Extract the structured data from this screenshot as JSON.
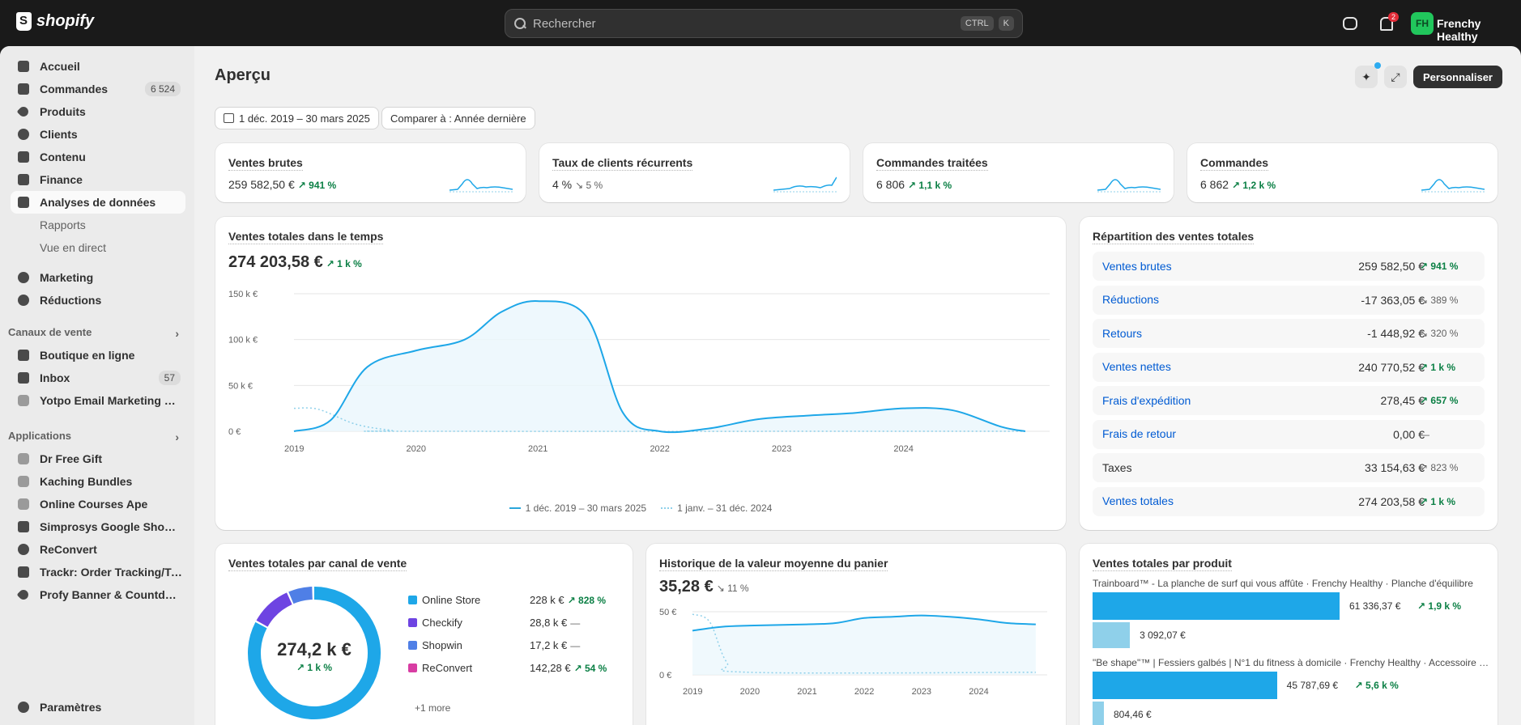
{
  "topbar": {
    "brand": "shopify",
    "search_placeholder": "Rechercher",
    "kbd_ctrl": "CTRL",
    "kbd_k": "K",
    "notifications_count": "2",
    "avatar_initials": "FH",
    "store_name": "Frenchy Healthy"
  },
  "sidebar": {
    "items": [
      {
        "label": "Accueil",
        "icon": "home-icon"
      },
      {
        "label": "Commandes",
        "icon": "inbox-icon",
        "count": "6 524"
      },
      {
        "label": "Produits",
        "icon": "tag-icon"
      },
      {
        "label": "Clients",
        "icon": "person-icon"
      },
      {
        "label": "Contenu",
        "icon": "content-icon"
      },
      {
        "label": "Finance",
        "icon": "bank-icon"
      },
      {
        "label": "Analyses de données",
        "icon": "chart-icon"
      },
      {
        "label": "Rapports"
      },
      {
        "label": "Vue en direct"
      },
      {
        "label": "Marketing",
        "icon": "target-icon"
      },
      {
        "label": "Réductions",
        "icon": "discount-icon"
      }
    ],
    "sales_channels_heading": "Canaux de vente",
    "sales_channels": [
      {
        "label": "Boutique en ligne",
        "icon": "store-icon"
      },
      {
        "label": "Inbox",
        "icon": "inbox-app-icon",
        "count": "57"
      },
      {
        "label": "Yotpo Email Marketing & S...",
        "icon": "yotpo-icon"
      }
    ],
    "apps_heading": "Applications",
    "apps": [
      {
        "label": "Dr Free Gift"
      },
      {
        "label": "Kaching Bundles"
      },
      {
        "label": "Online Courses Ape"
      },
      {
        "label": "Simprosys Google Shoppi..."
      },
      {
        "label": "ReConvert"
      },
      {
        "label": "Trackr: Order Tracking/Tr..."
      },
      {
        "label": "Profy Banner & Countdow..."
      }
    ],
    "settings_label": "Paramètres"
  },
  "header": {
    "title": "Aperçu",
    "customize_label": "Personnaliser",
    "date_range": "1 déc. 2019 – 30 mars 2025",
    "compare": "Comparer à : Année dernière"
  },
  "kpis": [
    {
      "title": "Ventes brutes",
      "value": "259 582,50 €",
      "change": "↗ 941 %",
      "dir": "up"
    },
    {
      "title": "Taux de clients récurrents",
      "value": "4 %",
      "change": "↘ 5 %",
      "dir": "down"
    },
    {
      "title": "Commandes traitées",
      "value": "6 806",
      "change": "↗ 1,1 k %",
      "dir": "up"
    },
    {
      "title": "Commandes",
      "value": "6 862",
      "change": "↗ 1,2 k %",
      "dir": "up"
    }
  ],
  "sales_over_time": {
    "title": "Ventes totales dans le temps",
    "value": "274 203,58 €",
    "change": "↗ 1 k %",
    "legend_current": "1 déc. 2019 – 30 mars 2025",
    "legend_previous": "1 janv. – 31 déc. 2024"
  },
  "breakdown": {
    "title": "Répartition des ventes totales",
    "rows": [
      {
        "label": "Ventes brutes",
        "value": "259 582,50 €",
        "change": "↗ 941 %",
        "dir": "up",
        "link": true
      },
      {
        "label": "Réductions",
        "value": "-17 363,05 €",
        "change": "↘ 389 %",
        "dir": "down",
        "link": true
      },
      {
        "label": "Retours",
        "value": "-1 448,92 €",
        "change": "↘ 320 %",
        "dir": "down",
        "link": true
      },
      {
        "label": "Ventes nettes",
        "value": "240 770,52 €",
        "change": "↗ 1 k %",
        "dir": "up",
        "link": true
      },
      {
        "label": "Frais d'expédition",
        "value": "278,45 €",
        "change": "↗ 657 %",
        "dir": "up",
        "link": true
      },
      {
        "label": "Frais de retour",
        "value": "0,00 €",
        "change": "—",
        "dir": "down",
        "link": true
      },
      {
        "label": "Taxes",
        "value": "33 154,63 €",
        "change": "↗ 823 %",
        "dir": "down",
        "link": false
      },
      {
        "label": "Ventes totales",
        "value": "274 203,58 €",
        "change": "↗ 1 k %",
        "dir": "up",
        "link": true
      }
    ]
  },
  "by_channel": {
    "title": "Ventes totales par canal de vente",
    "center_value": "274,2 k €",
    "center_change": "↗ 1 k %",
    "channels": [
      {
        "name": "Online Store",
        "value": "228 k €",
        "change": "↗ 828 %",
        "color": "#1ea7e8"
      },
      {
        "name": "Checkify",
        "value": "28,8 k €",
        "change": "—",
        "color": "#6e44e2"
      },
      {
        "name": "Shopwin",
        "value": "17,2 k €",
        "change": "—",
        "color": "#4f7fe6"
      },
      {
        "name": "ReConvert",
        "value": "142,28 €",
        "change": "↗ 54 %",
        "color": "#d83da3"
      }
    ],
    "more": "+1 more"
  },
  "aov": {
    "title": "Historique de la valeur moyenne du panier",
    "value": "35,28 €",
    "change": "↘ 11 %"
  },
  "by_product": {
    "title": "Ventes totales par produit",
    "products": [
      {
        "name": "Trainboard™ - La planche de surf qui vous affûte · Frenchy Healthy · Planche d'équilibre",
        "value": "61 336,37 €",
        "prev": "3 092,07 €",
        "change": "↗ 1,9 k %"
      },
      {
        "name": "\"Be shape\"™ | Fessiers galbés | N°1 du fitness à domicile · Frenchy Healthy · Accessoire de...",
        "value": "45 787,69 €",
        "prev": "804,46 €",
        "change": "↗ 5,6 k %"
      }
    ]
  },
  "chart_data": [
    {
      "type": "line",
      "title": "Ventes totales dans le temps",
      "x": [
        "2019",
        "2020",
        "2021",
        "2022",
        "2023",
        "2024"
      ],
      "ylim": [
        0,
        150000
      ],
      "yticks": [
        "0 €",
        "50 k €",
        "100 k €",
        "150 k €"
      ],
      "series": [
        {
          "name": "1 déc. 2019 – 30 mars 2025",
          "points": [
            [
              2019.0,
              0
            ],
            [
              2019.3,
              12000
            ],
            [
              2019.6,
              70000
            ],
            [
              2020.0,
              88000
            ],
            [
              2020.4,
              100000
            ],
            [
              2020.7,
              130000
            ],
            [
              2021.0,
              142000
            ],
            [
              2021.4,
              125000
            ],
            [
              2021.7,
              20000
            ],
            [
              2022.0,
              0
            ],
            [
              2022.4,
              3000
            ],
            [
              2022.8,
              13000
            ],
            [
              2023.2,
              17000
            ],
            [
              2023.6,
              20000
            ],
            [
              2024.0,
              25000
            ],
            [
              2024.4,
              23000
            ],
            [
              2024.8,
              5000
            ],
            [
              2025.0,
              0
            ]
          ]
        },
        {
          "name": "1 janv. – 31 déc. 2024",
          "points": [
            [
              2019.0,
              25000
            ],
            [
              2019.2,
              24000
            ],
            [
              2019.5,
              8000
            ],
            [
              2019.8,
              1000
            ],
            [
              2020.0,
              0
            ],
            [
              2025.0,
              0
            ]
          ]
        }
      ]
    },
    {
      "type": "pie",
      "title": "Ventes totales par canal de vente",
      "categories": [
        "Online Store",
        "Checkify",
        "Shopwin",
        "ReConvert"
      ],
      "values": [
        228000,
        28800,
        17200,
        142.28
      ]
    },
    {
      "type": "line",
      "title": "Historique de la valeur moyenne du panier",
      "x": [
        "2019",
        "2020",
        "2021",
        "2022",
        "2023",
        "2024"
      ],
      "yticks": [
        "0 €",
        "50 €"
      ],
      "ylim": [
        0,
        55
      ],
      "series": [
        {
          "name": "current",
          "points": [
            [
              2019.0,
              35
            ],
            [
              2019.5,
              38
            ],
            [
              2020.0,
              39
            ],
            [
              2021.0,
              40
            ],
            [
              2021.5,
              41
            ],
            [
              2022.0,
              45
            ],
            [
              2022.5,
              46
            ],
            [
              2023.0,
              47
            ],
            [
              2023.5,
              46
            ],
            [
              2024.0,
              44
            ],
            [
              2024.5,
              41
            ],
            [
              2025.0,
              40
            ]
          ]
        },
        {
          "name": "previous",
          "points": [
            [
              2019.0,
              48
            ],
            [
              2019.3,
              42
            ],
            [
              2019.6,
              10
            ],
            [
              2020.0,
              2
            ],
            [
              2025.0,
              2
            ]
          ]
        }
      ]
    },
    {
      "type": "bar",
      "title": "Ventes totales par produit",
      "categories": [
        "Trainboard™",
        "\"Be shape\"™"
      ],
      "series": [
        {
          "name": "current",
          "values": [
            61336.37,
            45787.69
          ]
        },
        {
          "name": "previous",
          "values": [
            3092.07,
            804.46
          ]
        }
      ]
    }
  ]
}
